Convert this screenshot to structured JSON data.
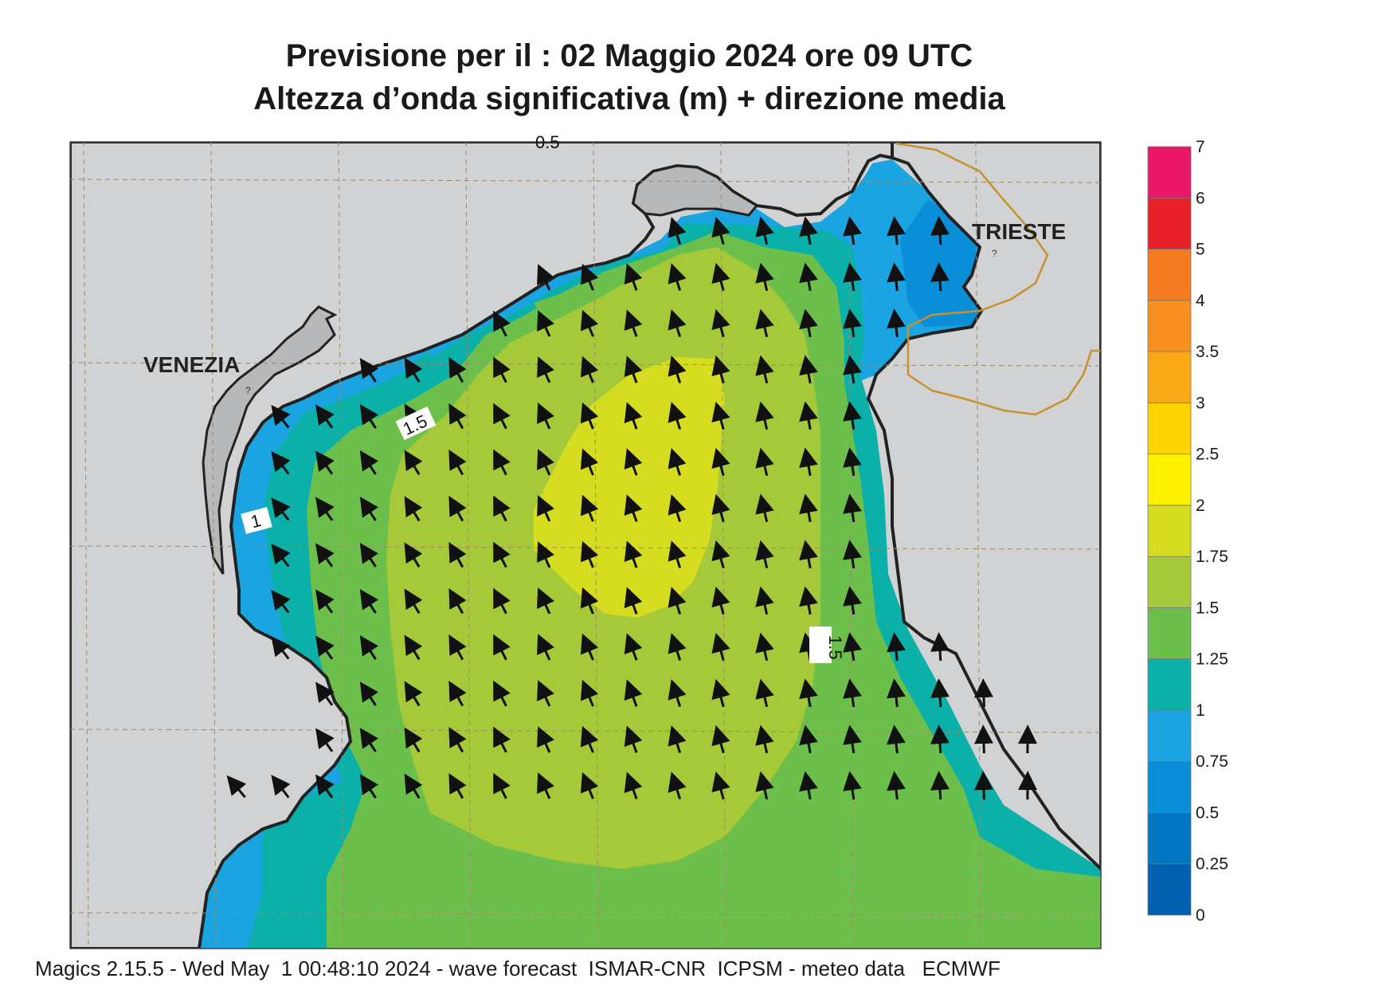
{
  "title": {
    "line1": "Previsione per il  :  02   Maggio  2024   ore 09 UTC",
    "line2": "Altezza d’onda significativa (m) + direzione media"
  },
  "map": {
    "cities": [
      "VENEZIA",
      "TRIESTE"
    ],
    "contour_labels": [
      "1.5",
      "1",
      "1.5"
    ],
    "top_edge_label": "0.5",
    "wave_direction": "north-northwest"
  },
  "legend": {
    "levels": [
      "0",
      "0.25",
      "0.5",
      "0.75",
      "1",
      "1.25",
      "1.5",
      "1.75",
      "2",
      "2.5",
      "3",
      "3.5",
      "4",
      "5",
      "6",
      "7"
    ],
    "colors": [
      "#0060b0",
      "#0075c0",
      "#0a8ed8",
      "#1aa4e2",
      "#0bb0a8",
      "#6cbf4a",
      "#a6c93a",
      "#d6dc20",
      "#fff200",
      "#ffd400",
      "#fbaa17",
      "#f7901e",
      "#f47b20",
      "#e8202a",
      "#ea1766"
    ]
  },
  "footer": "Magics 2.15.5 - Wed May  1 00:48:10 2024 - wave forecast  ISMAR-CNR  ICPSM - meteo data   ECMWF"
}
